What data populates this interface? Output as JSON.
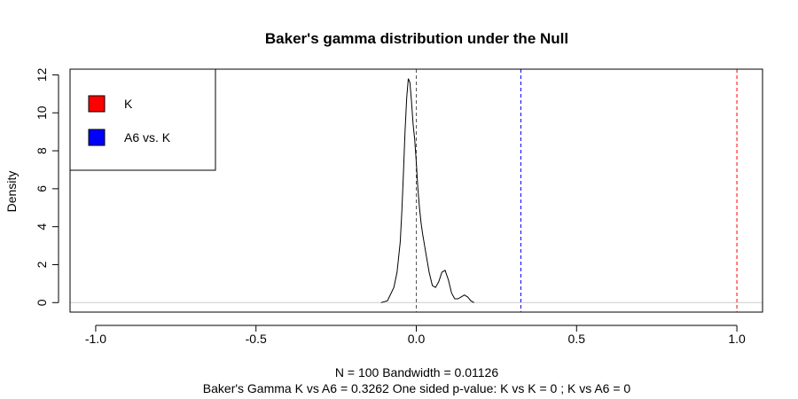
{
  "chart_data": {
    "type": "line",
    "title": "Baker's gamma distribution under the Null",
    "xlabel_line1": "N = 100   Bandwidth = 0.01126",
    "xlabel_line2": "Baker's Gamma K vs A6 = 0.3262 One sided p-value: K vs K = 0  ; K vs A6 = 0",
    "ylabel": "Density",
    "xlim": [
      -1.08,
      1.08
    ],
    "ylim": [
      -0.5,
      12.3
    ],
    "x_ticks": [
      -1.0,
      -0.5,
      0.0,
      0.5,
      1.0
    ],
    "x_tick_labels": [
      "-1.0",
      "-0.5",
      "0.0",
      "0.5",
      "1.0"
    ],
    "y_ticks": [
      0,
      2,
      4,
      6,
      8,
      10,
      12
    ],
    "y_tick_labels": [
      "0",
      "2",
      "4",
      "6",
      "8",
      "10",
      "12"
    ],
    "series": [
      {
        "x": [
          -0.11,
          -0.09,
          -0.07,
          -0.06,
          -0.05,
          -0.045,
          -0.04,
          -0.035,
          -0.03,
          -0.025,
          -0.02,
          -0.015,
          -0.01,
          -0.005,
          0.0,
          0.005,
          0.01,
          0.015,
          0.02,
          0.03,
          0.04,
          0.05,
          0.06,
          0.07,
          0.08,
          0.09,
          0.1,
          0.11,
          0.12,
          0.13,
          0.14,
          0.15,
          0.16,
          0.17,
          0.18
        ],
        "y": [
          0.0,
          0.1,
          0.8,
          1.6,
          3.2,
          4.8,
          6.8,
          9.0,
          10.8,
          11.8,
          11.6,
          10.6,
          9.4,
          8.6,
          7.4,
          6.0,
          5.0,
          4.2,
          3.6,
          2.6,
          1.6,
          0.9,
          0.8,
          1.1,
          1.6,
          1.7,
          1.2,
          0.5,
          0.2,
          0.2,
          0.3,
          0.4,
          0.3,
          0.1,
          0.0
        ]
      }
    ],
    "vlines": [
      {
        "x": 0.0,
        "color": "#555555"
      },
      {
        "x": 0.3262,
        "color": "#0000ff"
      },
      {
        "x": 1.0,
        "color": "#ff0000"
      }
    ],
    "zero_line_color": "#cccccc",
    "legend": {
      "position": "top-left",
      "items": [
        {
          "label": "K",
          "color": "#ff0000"
        },
        {
          "label": "A6 vs. K",
          "color": "#0000ff"
        }
      ]
    },
    "grid": false
  }
}
